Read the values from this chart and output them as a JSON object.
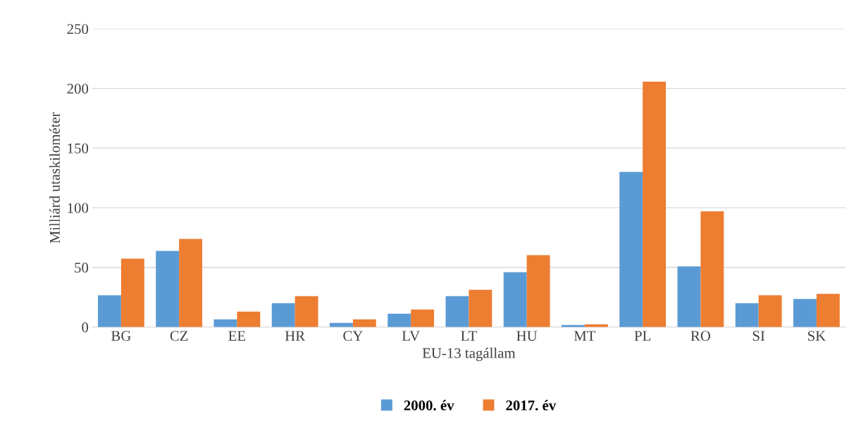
{
  "chart_data": {
    "type": "bar",
    "xlabel": "EU-13 tagállam",
    "ylabel": "Milliárd utaskilométer",
    "categories": [
      "BG",
      "CZ",
      "EE",
      "HR",
      "CY",
      "LV",
      "LT",
      "HU",
      "MT",
      "PL",
      "RO",
      "SI",
      "SK"
    ],
    "series": [
      {
        "name": "2000. év",
        "color": "#5b9bd5",
        "values": [
          26.6,
          63.8,
          6.5,
          20,
          3.5,
          11.2,
          26,
          46,
          1.8,
          130,
          50.8,
          20,
          23.6
        ]
      },
      {
        "name": "2017. év",
        "color": "#ed7d31",
        "values": [
          57.3,
          73.9,
          13,
          26,
          6.5,
          14.8,
          31.3,
          60.3,
          2.4,
          205.7,
          97,
          26.6,
          27.8
        ]
      }
    ],
    "ylim": [
      0,
      250
    ],
    "yticks": [
      0,
      50,
      100,
      150,
      200,
      250
    ],
    "grid": "y",
    "legend": "bottom"
  }
}
